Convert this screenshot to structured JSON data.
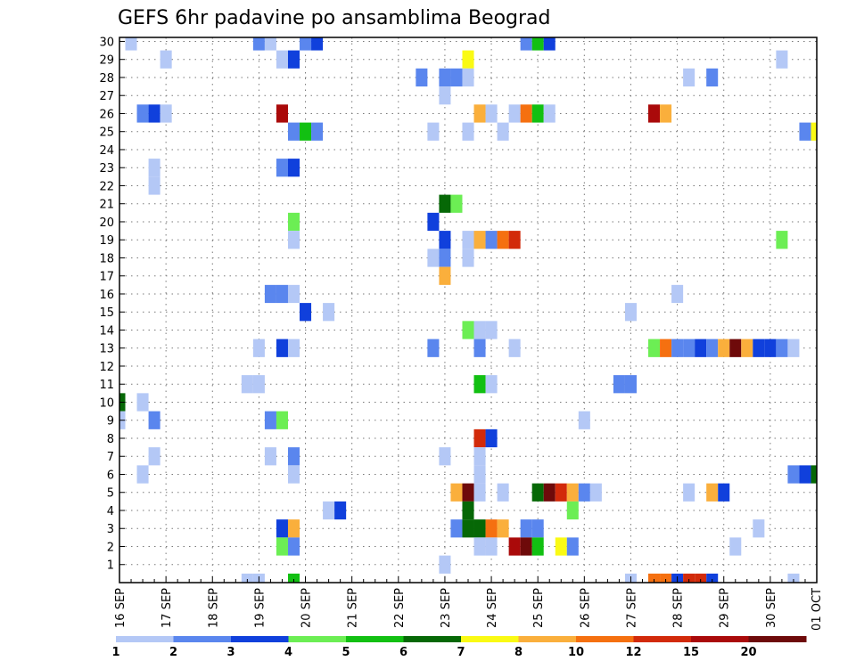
{
  "title": "GEFS 6hr padavine po ansamblima Beograd",
  "chart_data": {
    "type": "heatmap",
    "title": "GEFS 6hr padavine po ansamblima Beograd",
    "xlabel": "",
    "ylabel": "",
    "x_ticks": [
      "16 SEP",
      "17 SEP",
      "18 SEP",
      "19 SEP",
      "20 SEP",
      "21 SEP",
      "22 SEP",
      "23 SEP",
      "24 SEP",
      "25 SEP",
      "26 SEP",
      "27 SEP",
      "28 SEP",
      "29 SEP",
      "30 SEP",
      "01 OCT"
    ],
    "y_ticks": [
      "1",
      "2",
      "3",
      "4",
      "5",
      "6",
      "7",
      "8",
      "9",
      "10",
      "11",
      "12",
      "13",
      "14",
      "15",
      "16",
      "17",
      "18",
      "19",
      "20",
      "21",
      "22",
      "23",
      "24",
      "25",
      "26",
      "27",
      "28",
      "29",
      "30"
    ],
    "x_range_steps": [
      0,
      60
    ],
    "y_range_members": [
      0,
      30
    ],
    "time_step": "6hr",
    "grid": true,
    "colorbar": {
      "boundaries": [
        "1",
        "2",
        "3",
        "4",
        "5",
        "6",
        "7",
        "8",
        "10",
        "12",
        "15",
        "20",
        ""
      ],
      "colors": [
        "#b4c8f6",
        "#5a86ee",
        "#1040dc",
        "#6cee54",
        "#12c012",
        "#066806",
        "#fafa14",
        "#faaf3c",
        "#f57010",
        "#d22a0a",
        "#aa0a0a",
        "#6e0a0a"
      ]
    },
    "cells": [
      {
        "m": 30,
        "t": 1,
        "c": 0
      },
      {
        "m": 30,
        "t": 12,
        "c": 1
      },
      {
        "m": 30,
        "t": 13,
        "c": 0
      },
      {
        "m": 30,
        "t": 16,
        "c": 1
      },
      {
        "m": 30,
        "t": 17,
        "c": 2
      },
      {
        "m": 30,
        "t": 35,
        "c": 1
      },
      {
        "m": 30,
        "t": 36,
        "c": 4
      },
      {
        "m": 30,
        "t": 37,
        "c": 2
      },
      {
        "m": 29,
        "t": 4,
        "c": 0
      },
      {
        "m": 29,
        "t": 14,
        "c": 0
      },
      {
        "m": 29,
        "t": 15,
        "c": 2
      },
      {
        "m": 29,
        "t": 30,
        "c": 6
      },
      {
        "m": 29,
        "t": 57,
        "c": 0
      },
      {
        "m": 28,
        "t": 26,
        "c": 1
      },
      {
        "m": 28,
        "t": 28,
        "c": 1
      },
      {
        "m": 28,
        "t": 29,
        "c": 1
      },
      {
        "m": 28,
        "t": 30,
        "c": 0
      },
      {
        "m": 28,
        "t": 49,
        "c": 0
      },
      {
        "m": 28,
        "t": 51,
        "c": 1
      },
      {
        "m": 27,
        "t": 28,
        "c": 0
      },
      {
        "m": 26,
        "t": 2,
        "c": 1
      },
      {
        "m": 26,
        "t": 3,
        "c": 2
      },
      {
        "m": 26,
        "t": 4,
        "c": 0
      },
      {
        "m": 26,
        "t": 14,
        "c": 10
      },
      {
        "m": 26,
        "t": 31,
        "c": 7
      },
      {
        "m": 26,
        "t": 32,
        "c": 0
      },
      {
        "m": 26,
        "t": 34,
        "c": 0
      },
      {
        "m": 26,
        "t": 35,
        "c": 8
      },
      {
        "m": 26,
        "t": 36,
        "c": 4
      },
      {
        "m": 26,
        "t": 37,
        "c": 0
      },
      {
        "m": 26,
        "t": 46,
        "c": 10
      },
      {
        "m": 26,
        "t": 47,
        "c": 7
      },
      {
        "m": 25,
        "t": 15,
        "c": 1
      },
      {
        "m": 25,
        "t": 16,
        "c": 4
      },
      {
        "m": 25,
        "t": 17,
        "c": 1
      },
      {
        "m": 25,
        "t": 27,
        "c": 0
      },
      {
        "m": 25,
        "t": 30,
        "c": 0
      },
      {
        "m": 25,
        "t": 33,
        "c": 0
      },
      {
        "m": 25,
        "t": 59,
        "c": 1
      },
      {
        "m": 25,
        "t": 60,
        "c": 6
      },
      {
        "m": 23,
        "t": 3,
        "c": 0
      },
      {
        "m": 23,
        "t": 14,
        "c": 1
      },
      {
        "m": 23,
        "t": 15,
        "c": 2
      },
      {
        "m": 22,
        "t": 3,
        "c": 0
      },
      {
        "m": 21,
        "t": 28,
        "c": 5
      },
      {
        "m": 21,
        "t": 29,
        "c": 3
      },
      {
        "m": 20,
        "t": 15,
        "c": 3
      },
      {
        "m": 20,
        "t": 27,
        "c": 2
      },
      {
        "m": 19,
        "t": 15,
        "c": 0
      },
      {
        "m": 19,
        "t": 28,
        "c": 2
      },
      {
        "m": 19,
        "t": 30,
        "c": 0
      },
      {
        "m": 19,
        "t": 31,
        "c": 7
      },
      {
        "m": 19,
        "t": 32,
        "c": 1
      },
      {
        "m": 19,
        "t": 33,
        "c": 8
      },
      {
        "m": 19,
        "t": 34,
        "c": 9
      },
      {
        "m": 19,
        "t": 57,
        "c": 3
      },
      {
        "m": 18,
        "t": 27,
        "c": 0
      },
      {
        "m": 18,
        "t": 28,
        "c": 1
      },
      {
        "m": 18,
        "t": 30,
        "c": 0
      },
      {
        "m": 17,
        "t": 28,
        "c": 7
      },
      {
        "m": 16,
        "t": 13,
        "c": 1
      },
      {
        "m": 16,
        "t": 14,
        "c": 1
      },
      {
        "m": 16,
        "t": 15,
        "c": 0
      },
      {
        "m": 16,
        "t": 48,
        "c": 0
      },
      {
        "m": 15,
        "t": 16,
        "c": 2
      },
      {
        "m": 15,
        "t": 18,
        "c": 0
      },
      {
        "m": 15,
        "t": 44,
        "c": 0
      },
      {
        "m": 14,
        "t": 30,
        "c": 3
      },
      {
        "m": 14,
        "t": 31,
        "c": 0
      },
      {
        "m": 14,
        "t": 32,
        "c": 0
      },
      {
        "m": 13,
        "t": 12,
        "c": 0
      },
      {
        "m": 13,
        "t": 14,
        "c": 2
      },
      {
        "m": 13,
        "t": 15,
        "c": 0
      },
      {
        "m": 13,
        "t": 27,
        "c": 1
      },
      {
        "m": 13,
        "t": 31,
        "c": 1
      },
      {
        "m": 13,
        "t": 34,
        "c": 0
      },
      {
        "m": 13,
        "t": 46,
        "c": 3
      },
      {
        "m": 13,
        "t": 47,
        "c": 8
      },
      {
        "m": 13,
        "t": 48,
        "c": 1
      },
      {
        "m": 13,
        "t": 49,
        "c": 1
      },
      {
        "m": 13,
        "t": 50,
        "c": 2
      },
      {
        "m": 13,
        "t": 51,
        "c": 1
      },
      {
        "m": 13,
        "t": 52,
        "c": 7
      },
      {
        "m": 13,
        "t": 53,
        "c": 11
      },
      {
        "m": 13,
        "t": 54,
        "c": 7
      },
      {
        "m": 13,
        "t": 55,
        "c": 2
      },
      {
        "m": 13,
        "t": 56,
        "c": 2
      },
      {
        "m": 13,
        "t": 57,
        "c": 1
      },
      {
        "m": 13,
        "t": 58,
        "c": 0
      },
      {
        "m": 11,
        "t": 11,
        "c": 0
      },
      {
        "m": 11,
        "t": 12,
        "c": 0
      },
      {
        "m": 11,
        "t": 31,
        "c": 4
      },
      {
        "m": 11,
        "t": 32,
        "c": 0
      },
      {
        "m": 11,
        "t": 43,
        "c": 1
      },
      {
        "m": 11,
        "t": 44,
        "c": 1
      },
      {
        "m": 10,
        "t": 0,
        "c": 5
      },
      {
        "m": 10,
        "t": 2,
        "c": 0
      },
      {
        "m": 9,
        "t": 0,
        "c": 0
      },
      {
        "m": 9,
        "t": 3,
        "c": 1
      },
      {
        "m": 9,
        "t": 13,
        "c": 1
      },
      {
        "m": 9,
        "t": 14,
        "c": 3
      },
      {
        "m": 9,
        "t": 40,
        "c": 0
      },
      {
        "m": 8,
        "t": 31,
        "c": 9
      },
      {
        "m": 8,
        "t": 32,
        "c": 2
      },
      {
        "m": 7,
        "t": 3,
        "c": 0
      },
      {
        "m": 7,
        "t": 13,
        "c": 0
      },
      {
        "m": 7,
        "t": 15,
        "c": 1
      },
      {
        "m": 7,
        "t": 28,
        "c": 0
      },
      {
        "m": 7,
        "t": 31,
        "c": 0
      },
      {
        "m": 6,
        "t": 2,
        "c": 0
      },
      {
        "m": 6,
        "t": 15,
        "c": 0
      },
      {
        "m": 6,
        "t": 31,
        "c": 0
      },
      {
        "m": 6,
        "t": 58,
        "c": 1
      },
      {
        "m": 6,
        "t": 59,
        "c": 2
      },
      {
        "m": 6,
        "t": 60,
        "c": 5
      },
      {
        "m": 5,
        "t": 29,
        "c": 7
      },
      {
        "m": 5,
        "t": 30,
        "c": 11
      },
      {
        "m": 5,
        "t": 31,
        "c": 0
      },
      {
        "m": 5,
        "t": 33,
        "c": 0
      },
      {
        "m": 5,
        "t": 36,
        "c": 5
      },
      {
        "m": 5,
        "t": 37,
        "c": 11
      },
      {
        "m": 5,
        "t": 38,
        "c": 9
      },
      {
        "m": 5,
        "t": 39,
        "c": 7
      },
      {
        "m": 5,
        "t": 40,
        "c": 1
      },
      {
        "m": 5,
        "t": 41,
        "c": 0
      },
      {
        "m": 5,
        "t": 49,
        "c": 0
      },
      {
        "m": 5,
        "t": 51,
        "c": 7
      },
      {
        "m": 5,
        "t": 52,
        "c": 2
      },
      {
        "m": 4,
        "t": 18,
        "c": 0
      },
      {
        "m": 4,
        "t": 19,
        "c": 2
      },
      {
        "m": 4,
        "t": 30,
        "c": 5
      },
      {
        "m": 4,
        "t": 39,
        "c": 3
      },
      {
        "m": 3,
        "t": 14,
        "c": 2
      },
      {
        "m": 3,
        "t": 15,
        "c": 7
      },
      {
        "m": 3,
        "t": 29,
        "c": 1
      },
      {
        "m": 3,
        "t": 30,
        "c": 5
      },
      {
        "m": 3,
        "t": 31,
        "c": 5
      },
      {
        "m": 3,
        "t": 32,
        "c": 8
      },
      {
        "m": 3,
        "t": 33,
        "c": 7
      },
      {
        "m": 3,
        "t": 35,
        "c": 1
      },
      {
        "m": 3,
        "t": 36,
        "c": 1
      },
      {
        "m": 3,
        "t": 55,
        "c": 0
      },
      {
        "m": 2,
        "t": 14,
        "c": 3
      },
      {
        "m": 2,
        "t": 15,
        "c": 1
      },
      {
        "m": 2,
        "t": 31,
        "c": 0
      },
      {
        "m": 2,
        "t": 32,
        "c": 0
      },
      {
        "m": 2,
        "t": 34,
        "c": 10
      },
      {
        "m": 2,
        "t": 35,
        "c": 11
      },
      {
        "m": 2,
        "t": 36,
        "c": 4
      },
      {
        "m": 2,
        "t": 38,
        "c": 6
      },
      {
        "m": 2,
        "t": 39,
        "c": 1
      },
      {
        "m": 2,
        "t": 53,
        "c": 0
      },
      {
        "m": 1,
        "t": 28,
        "c": 0
      },
      {
        "m": 0,
        "t": 11,
        "c": 0
      },
      {
        "m": 0,
        "t": 12,
        "c": 0
      },
      {
        "m": 0,
        "t": 15,
        "c": 4
      },
      {
        "m": 0,
        "t": 44,
        "c": 0
      },
      {
        "m": 0,
        "t": 46,
        "c": 8
      },
      {
        "m": 0,
        "t": 47,
        "c": 8
      },
      {
        "m": 0,
        "t": 48,
        "c": 2
      },
      {
        "m": 0,
        "t": 49,
        "c": 9
      },
      {
        "m": 0,
        "t": 50,
        "c": 9
      },
      {
        "m": 0,
        "t": 51,
        "c": 2
      },
      {
        "m": 0,
        "t": 58,
        "c": 0
      }
    ]
  }
}
